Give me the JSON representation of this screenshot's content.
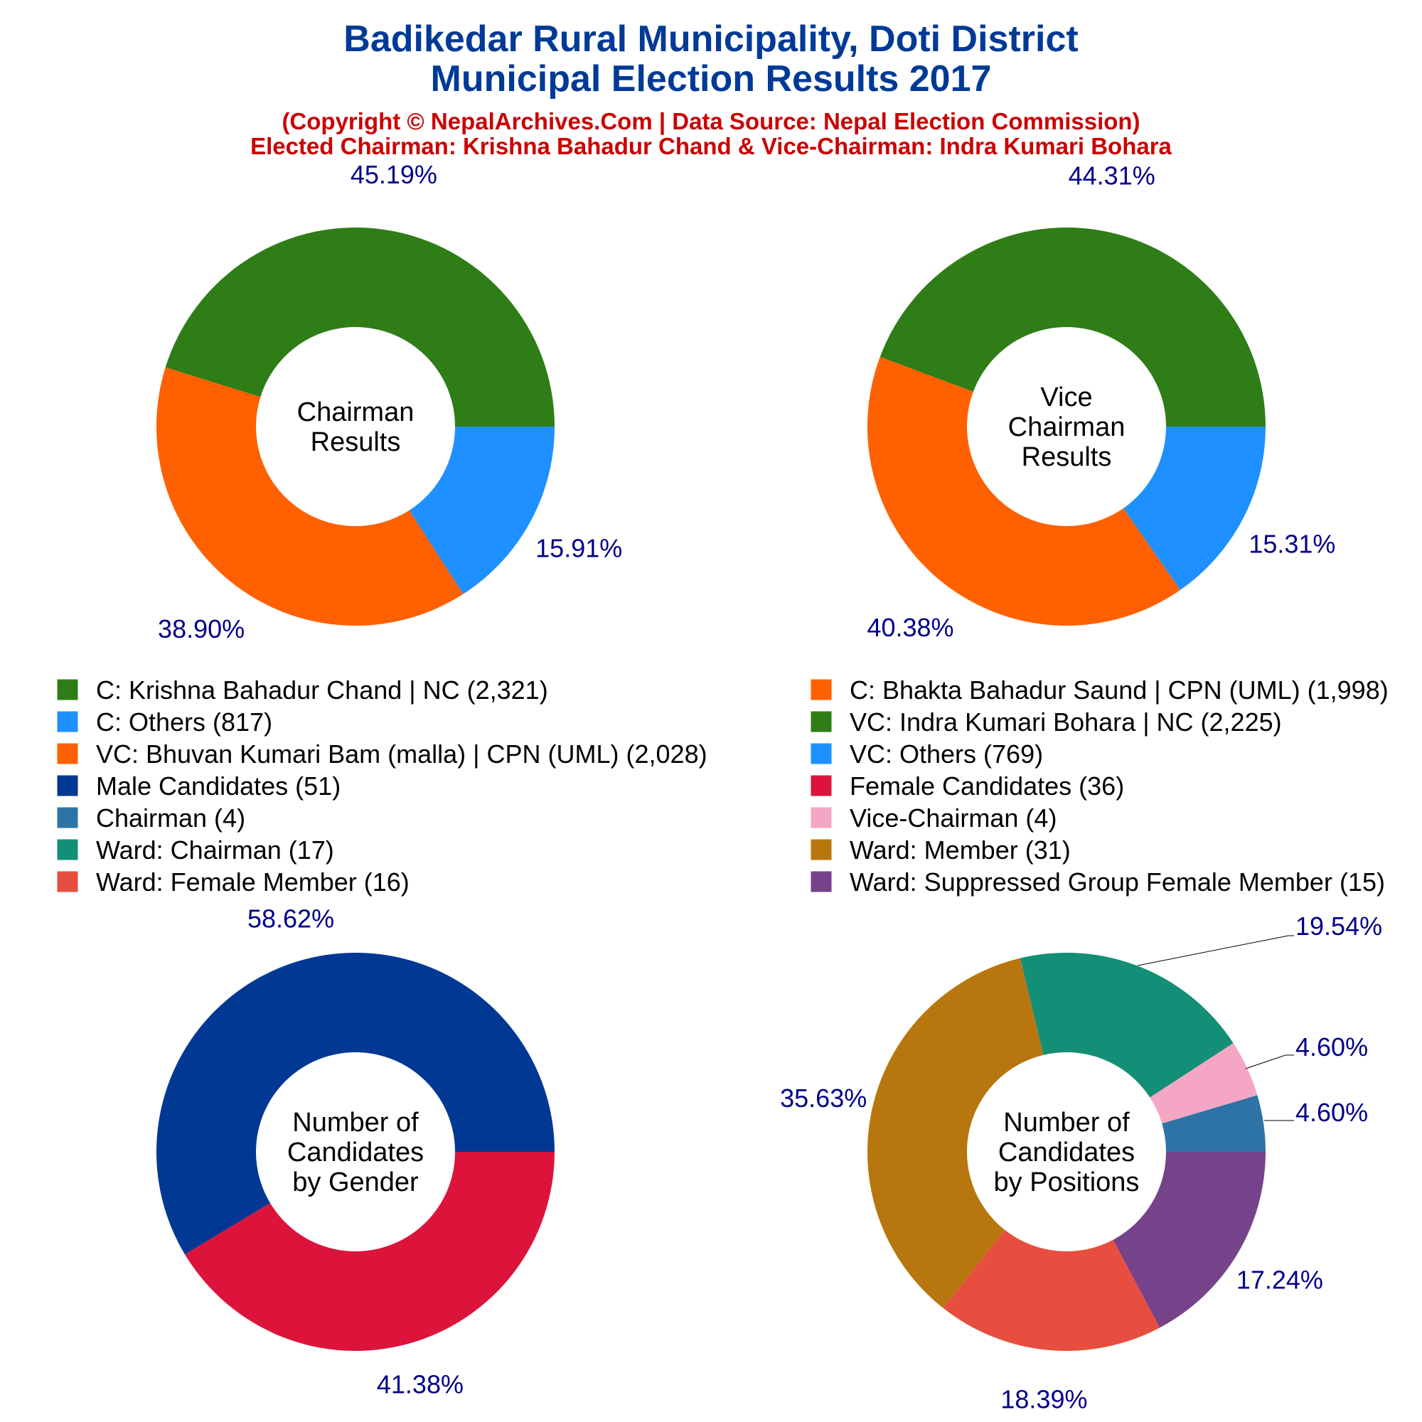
{
  "header": {
    "title_line1": "Badikedar Rural Municipality, Doti District",
    "title_line2": "Municipal Election Results 2017",
    "subtitle_line1": "(Copyright © NepalArchives.Com | Data Source: Nepal Election Commission)",
    "subtitle_line2": "Elected Chairman: Krishna Bahadur Chand & Vice-Chairman: Indra Kumari Bohara"
  },
  "legend": [
    {
      "label": "C: Krishna Bahadur Chand | NC (2,321)",
      "color": "#2e7d16"
    },
    {
      "label": "C: Bhakta Bahadur Saund | CPN (UML) (1,998)",
      "color": "#ff6000"
    },
    {
      "label": "C: Others (817)",
      "color": "#1e90ff"
    },
    {
      "label": "VC: Indra Kumari Bohara | NC (2,225)",
      "color": "#2e7d16"
    },
    {
      "label": "VC: Bhuvan Kumari Bam (malla) | CPN (UML) (2,028)",
      "color": "#ff6000"
    },
    {
      "label": "VC: Others (769)",
      "color": "#1e90ff"
    },
    {
      "label": "Male Candidates (51)",
      "color": "#003893"
    },
    {
      "label": "Female Candidates (36)",
      "color": "#dc143c"
    },
    {
      "label": "Chairman (4)",
      "color": "#2e73a6"
    },
    {
      "label": "Vice-Chairman (4)",
      "color": "#f4a6c4"
    },
    {
      "label": "Ward: Chairman (17)",
      "color": "#138f77"
    },
    {
      "label": "Ward: Member (31)",
      "color": "#b8770e"
    },
    {
      "label": "Ward: Female Member (16)",
      "color": "#e84e3f"
    },
    {
      "label": "Ward: Suppressed Group Female Member (15)",
      "color": "#76428a"
    }
  ],
  "chart_data": [
    {
      "type": "pie",
      "center_label": [
        "Chairman",
        "Results"
      ],
      "slices": [
        {
          "name": "C: Krishna Bahadur Chand | NC",
          "value": 2321,
          "label": "45.19%",
          "color": "#2e7d16"
        },
        {
          "name": "C: Bhakta Bahadur Saund | CPN (UML)",
          "value": 1998,
          "label": "38.90%",
          "color": "#ff6000"
        },
        {
          "name": "C: Others",
          "value": 817,
          "label": "15.91%",
          "color": "#1e90ff"
        }
      ]
    },
    {
      "type": "pie",
      "center_label": [
        "Vice",
        "Chairman",
        "Results"
      ],
      "slices": [
        {
          "name": "VC: Indra Kumari Bohara | NC",
          "value": 2225,
          "label": "44.31%",
          "color": "#2e7d16"
        },
        {
          "name": "VC: Bhuvan Kumari Bam (malla) | CPN (UML)",
          "value": 2028,
          "label": "40.38%",
          "color": "#ff6000"
        },
        {
          "name": "VC: Others",
          "value": 769,
          "label": "15.31%",
          "color": "#1e90ff"
        }
      ]
    },
    {
      "type": "pie",
      "center_label": [
        "Number of",
        "Candidates",
        "by Gender"
      ],
      "slices": [
        {
          "name": "Male Candidates",
          "value": 51,
          "label": "58.62%",
          "color": "#003893"
        },
        {
          "name": "Female Candidates",
          "value": 36,
          "label": "41.38%",
          "color": "#dc143c"
        }
      ]
    },
    {
      "type": "pie",
      "center_label": [
        "Number of",
        "Candidates",
        "by Positions"
      ],
      "slices": [
        {
          "name": "Chairman",
          "value": 4,
          "label": "4.60%",
          "color": "#2e73a6"
        },
        {
          "name": "Vice-Chairman",
          "value": 4,
          "label": "4.60%",
          "color": "#f4a6c4"
        },
        {
          "name": "Ward: Chairman",
          "value": 17,
          "label": "19.54%",
          "color": "#138f77"
        },
        {
          "name": "Ward: Member",
          "value": 31,
          "label": "35.63%",
          "color": "#b8770e"
        },
        {
          "name": "Ward: Female Member",
          "value": 16,
          "label": "18.39%",
          "color": "#e84e3f"
        },
        {
          "name": "Ward: Suppressed Group Female Member",
          "value": 15,
          "label": "17.24%",
          "color": "#76428a"
        }
      ]
    }
  ]
}
